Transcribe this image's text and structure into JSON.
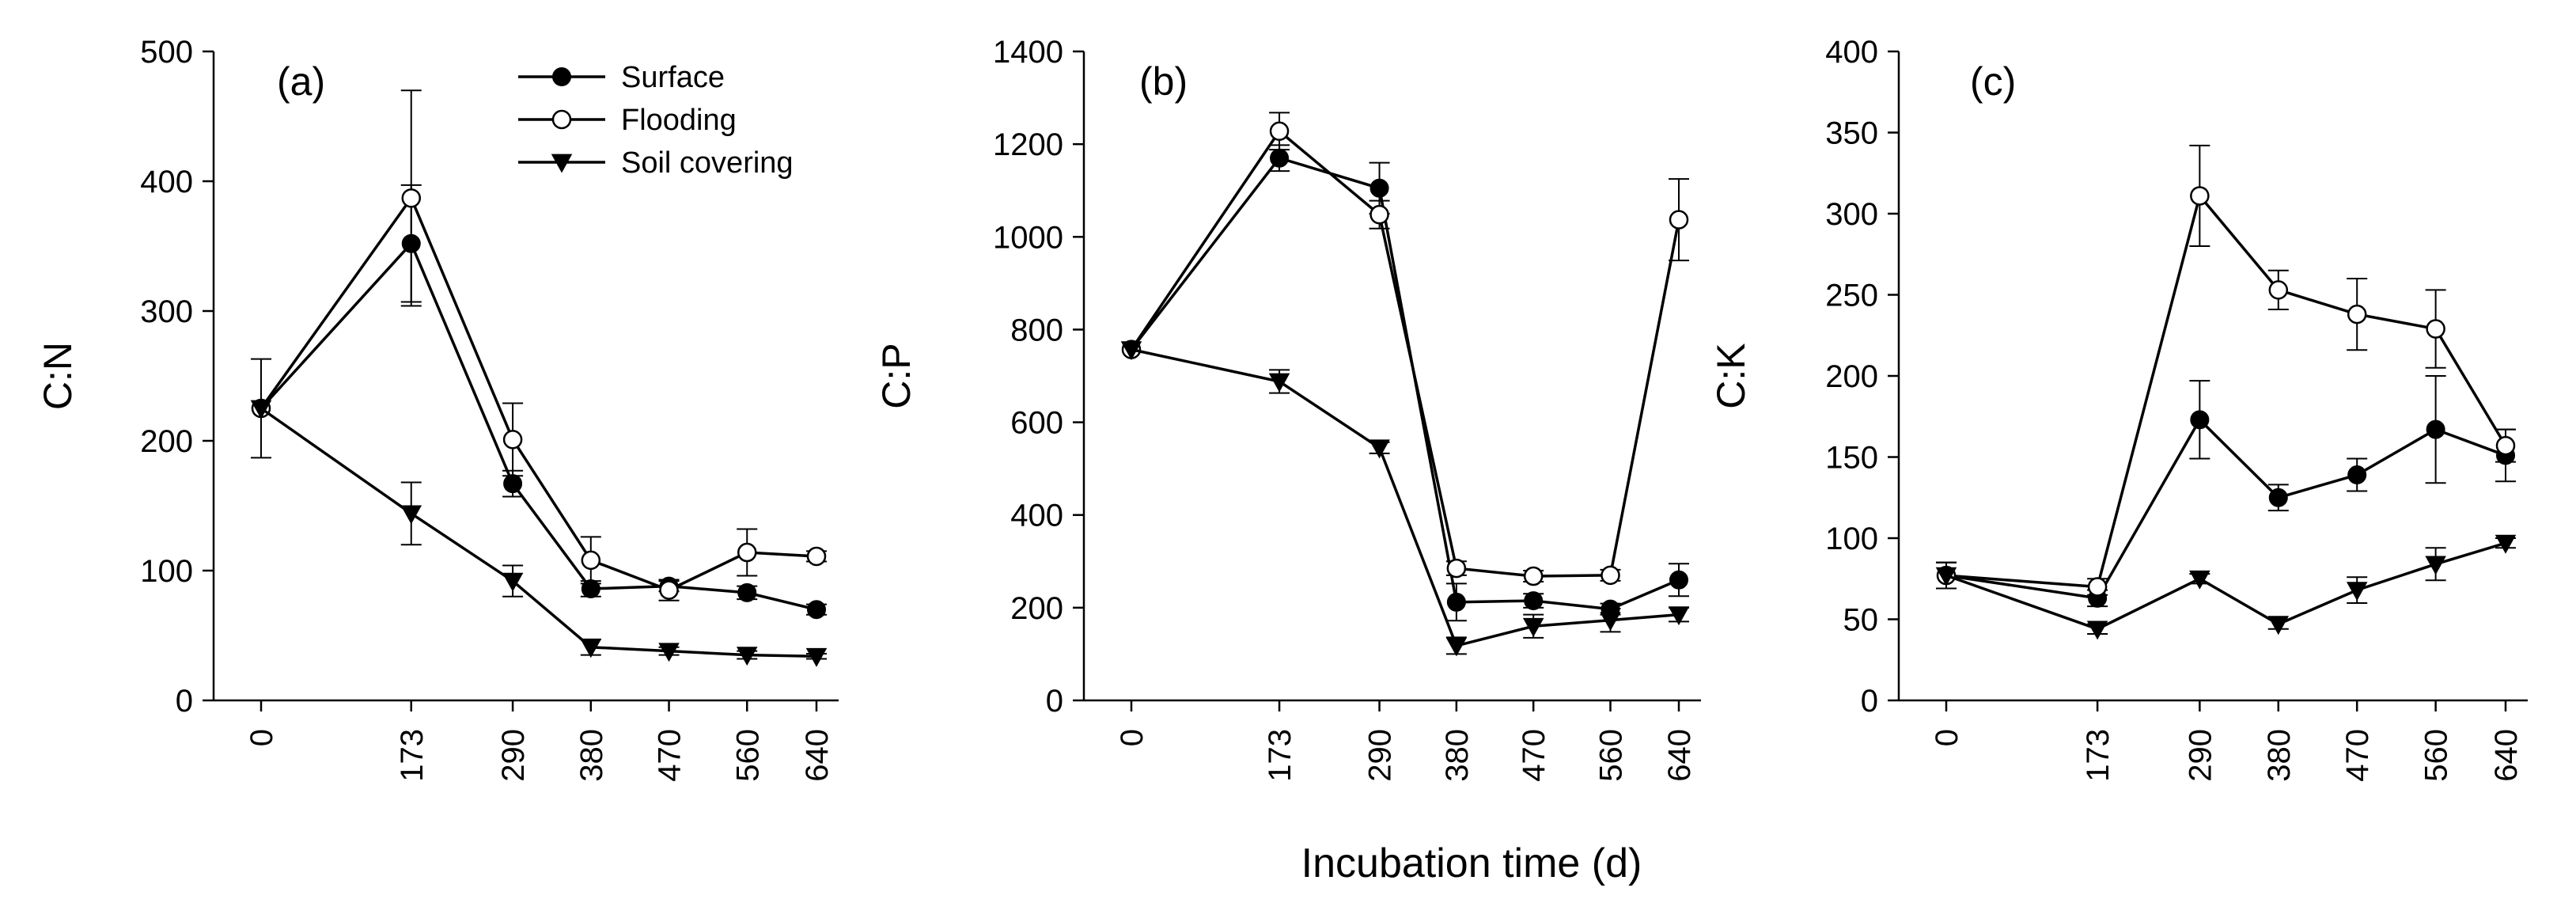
{
  "figure": {
    "shared_xlabel": "Incubation time (d)"
  },
  "legend": {
    "placement": "top-right of panel (a)",
    "entries": [
      {
        "name": "Surface",
        "marker": "filled-circle"
      },
      {
        "name": "Flooding",
        "marker": "open-circle"
      },
      {
        "name": "Soil covering",
        "marker": "filled-triangle-down"
      }
    ]
  },
  "colors": {
    "line": "#000000",
    "background": "#ffffff"
  },
  "chart_data": [
    {
      "panel": "(a)",
      "type": "line",
      "ylabel": "C:N",
      "xlabel": "Incubation time (d)",
      "ylim": [
        0,
        500
      ],
      "yticks": [
        0,
        100,
        200,
        300,
        400,
        500
      ],
      "x": [
        0,
        173,
        290,
        380,
        470,
        560,
        640
      ],
      "xtick_labels": [
        "0",
        "173",
        "290",
        "380",
        "470",
        "560",
        "640"
      ],
      "series": [
        {
          "name": "Surface",
          "marker": "filled-circle",
          "values": [
            225,
            352,
            167,
            86,
            88,
            83,
            70
          ],
          "errors": [
            0,
            45,
            10,
            6,
            4,
            5,
            4
          ]
        },
        {
          "name": "Flooding",
          "marker": "open-circle",
          "values": [
            225,
            387,
            201,
            108,
            85,
            114,
            111
          ],
          "errors": [
            38,
            83,
            28,
            18,
            8,
            18,
            4
          ]
        },
        {
          "name": "Soil covering",
          "marker": "filled-triangle-down",
          "values": [
            225,
            144,
            92,
            41,
            38,
            35,
            34
          ],
          "errors": [
            0,
            24,
            12,
            6,
            3,
            3,
            2
          ]
        }
      ]
    },
    {
      "panel": "(b)",
      "type": "line",
      "ylabel": "C:P",
      "xlabel": "Incubation time (d)",
      "ylim": [
        0,
        1400
      ],
      "yticks": [
        0,
        200,
        400,
        600,
        800,
        1000,
        1200,
        1400
      ],
      "x": [
        0,
        173,
        290,
        380,
        470,
        560,
        640
      ],
      "xtick_labels": [
        "0",
        "173",
        "290",
        "380",
        "470",
        "560",
        "640"
      ],
      "series": [
        {
          "name": "Surface",
          "marker": "filled-circle",
          "values": [
            757,
            1170,
            1105,
            212,
            215,
            197,
            260
          ],
          "errors": [
            0,
            28,
            55,
            40,
            15,
            12,
            35
          ]
        },
        {
          "name": "Flooding",
          "marker": "open-circle",
          "values": [
            757,
            1228,
            1048,
            285,
            268,
            270,
            1037
          ],
          "errors": [
            0,
            40,
            30,
            15,
            12,
            12,
            88
          ]
        },
        {
          "name": "Soil covering",
          "marker": "filled-triangle-down",
          "values": [
            757,
            688,
            545,
            118,
            160,
            173,
            185
          ],
          "errors": [
            0,
            25,
            12,
            18,
            25,
            25,
            15
          ]
        }
      ]
    },
    {
      "panel": "(c)",
      "type": "line",
      "ylabel": "C:K",
      "xlabel": "Incubation time (d)",
      "ylim": [
        0,
        400
      ],
      "yticks": [
        0,
        50,
        100,
        150,
        200,
        250,
        300,
        350,
        400
      ],
      "x": [
        0,
        173,
        290,
        380,
        470,
        560,
        640
      ],
      "xtick_labels": [
        "0",
        "173",
        "290",
        "380",
        "470",
        "560",
        "640"
      ],
      "series": [
        {
          "name": "Surface",
          "marker": "filled-circle",
          "values": [
            77,
            63,
            173,
            125,
            139,
            167,
            151
          ],
          "errors": [
            8,
            5,
            24,
            8,
            10,
            33,
            16
          ]
        },
        {
          "name": "Flooding",
          "marker": "open-circle",
          "values": [
            77,
            70,
            311,
            253,
            238,
            229,
            157
          ],
          "errors": [
            8,
            5,
            31,
            12,
            22,
            24,
            10
          ]
        },
        {
          "name": "Soil covering",
          "marker": "filled-triangle-down",
          "values": [
            77,
            44,
            75,
            47,
            68,
            84,
            97
          ],
          "errors": [
            8,
            3,
            3,
            3,
            8,
            10,
            3
          ]
        }
      ]
    }
  ]
}
